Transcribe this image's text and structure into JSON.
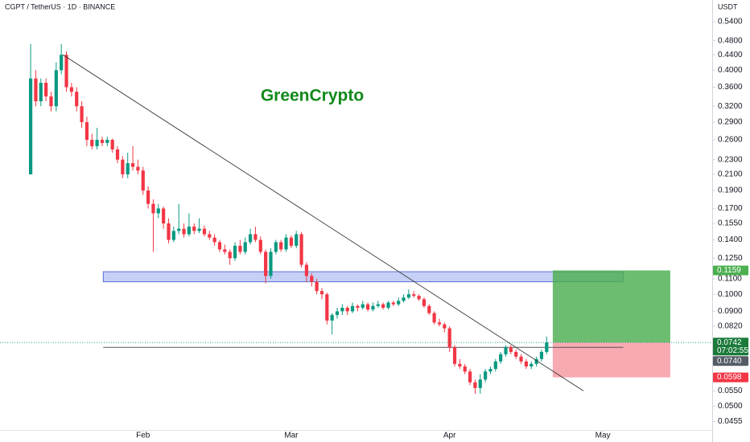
{
  "chart_data": {
    "type": "candlestick",
    "title": "CGPT / TetherUS · 1D · BINANCE",
    "y_unit": "USDT",
    "annotation": "GreenCrypto",
    "annotation_color": "#12891a",
    "log_scale": true,
    "grid": false,
    "up_color": "#089981",
    "down_color": "#f23645",
    "xlim": [
      -6,
      133.4
    ],
    "ylim": [
      0.0432,
      0.6175
    ],
    "xticks": [
      {
        "value": 22,
        "label": "Feb"
      },
      {
        "value": 51,
        "label": "Mar"
      },
      {
        "value": 82,
        "label": "Apr"
      },
      {
        "value": 112,
        "label": "May"
      }
    ],
    "yticks": [
      {
        "value": 0.54,
        "label": "0.5400"
      },
      {
        "value": 0.48,
        "label": "0.4800"
      },
      {
        "value": 0.44,
        "label": "0.4400"
      },
      {
        "value": 0.4,
        "label": "0.4000"
      },
      {
        "value": 0.36,
        "label": "0.3600"
      },
      {
        "value": 0.32,
        "label": "0.3200"
      },
      {
        "value": 0.29,
        "label": "0.2900"
      },
      {
        "value": 0.26,
        "label": "0.2600"
      },
      {
        "value": 0.23,
        "label": "0.2300"
      },
      {
        "value": 0.21,
        "label": "0.2100"
      },
      {
        "value": 0.19,
        "label": "0.1900"
      },
      {
        "value": 0.17,
        "label": "0.1700"
      },
      {
        "value": 0.155,
        "label": "0.1550"
      },
      {
        "value": 0.14,
        "label": "0.1400"
      },
      {
        "value": 0.125,
        "label": "0.1250"
      },
      {
        "value": 0.11,
        "label": "0.1100"
      },
      {
        "value": 0.1,
        "label": "0.1000"
      },
      {
        "value": 0.09,
        "label": "0.0900"
      },
      {
        "value": 0.082,
        "label": "0.0820"
      },
      {
        "value": 0.055,
        "label": "0.0550"
      },
      {
        "value": 0.05,
        "label": "0.0500"
      },
      {
        "value": 0.0455,
        "label": "0.0455"
      }
    ],
    "ohlc": [
      [
        0.21,
        0.47,
        0.21,
        0.38
      ],
      [
        0.38,
        0.4,
        0.32,
        0.33
      ],
      [
        0.33,
        0.38,
        0.32,
        0.37
      ],
      [
        0.37,
        0.38,
        0.33,
        0.34
      ],
      [
        0.34,
        0.35,
        0.31,
        0.32
      ],
      [
        0.32,
        0.42,
        0.31,
        0.4
      ],
      [
        0.4,
        0.47,
        0.39,
        0.44
      ],
      [
        0.44,
        0.45,
        0.35,
        0.36
      ],
      [
        0.36,
        0.37,
        0.34,
        0.35
      ],
      [
        0.35,
        0.36,
        0.31,
        0.32
      ],
      [
        0.32,
        0.33,
        0.28,
        0.29
      ],
      [
        0.29,
        0.3,
        0.25,
        0.26
      ],
      [
        0.26,
        0.27,
        0.245,
        0.25
      ],
      [
        0.25,
        0.28,
        0.245,
        0.26
      ],
      [
        0.26,
        0.265,
        0.25,
        0.255
      ],
      [
        0.255,
        0.265,
        0.25,
        0.26
      ],
      [
        0.26,
        0.262,
        0.24,
        0.245
      ],
      [
        0.245,
        0.25,
        0.225,
        0.23
      ],
      [
        0.23,
        0.235,
        0.205,
        0.21
      ],
      [
        0.21,
        0.24,
        0.205,
        0.225
      ],
      [
        0.225,
        0.25,
        0.215,
        0.22
      ],
      [
        0.22,
        0.23,
        0.21,
        0.215
      ],
      [
        0.215,
        0.22,
        0.185,
        0.19
      ],
      [
        0.19,
        0.195,
        0.17,
        0.175
      ],
      [
        0.175,
        0.18,
        0.13,
        0.165
      ],
      [
        0.165,
        0.175,
        0.16,
        0.17
      ],
      [
        0.17,
        0.172,
        0.15,
        0.155
      ],
      [
        0.155,
        0.16,
        0.137,
        0.14
      ],
      [
        0.14,
        0.152,
        0.138,
        0.148
      ],
      [
        0.148,
        0.175,
        0.145,
        0.15
      ],
      [
        0.15,
        0.155,
        0.142,
        0.145
      ],
      [
        0.145,
        0.165,
        0.143,
        0.152
      ],
      [
        0.152,
        0.155,
        0.145,
        0.148
      ],
      [
        0.148,
        0.16,
        0.146,
        0.15
      ],
      [
        0.15,
        0.153,
        0.143,
        0.145
      ],
      [
        0.145,
        0.148,
        0.14,
        0.142
      ],
      [
        0.142,
        0.145,
        0.135,
        0.138
      ],
      [
        0.138,
        0.14,
        0.13,
        0.132
      ],
      [
        0.132,
        0.136,
        0.128,
        0.13
      ],
      [
        0.13,
        0.132,
        0.12,
        0.125
      ],
      [
        0.125,
        0.138,
        0.123,
        0.135
      ],
      [
        0.135,
        0.14,
        0.128,
        0.13
      ],
      [
        0.13,
        0.142,
        0.128,
        0.138
      ],
      [
        0.138,
        0.15,
        0.136,
        0.145
      ],
      [
        0.145,
        0.152,
        0.138,
        0.14
      ],
      [
        0.14,
        0.143,
        0.128,
        0.13
      ],
      [
        0.13,
        0.132,
        0.107,
        0.112
      ],
      [
        0.112,
        0.133,
        0.11,
        0.13
      ],
      [
        0.13,
        0.14,
        0.128,
        0.138
      ],
      [
        0.138,
        0.14,
        0.13,
        0.132
      ],
      [
        0.132,
        0.145,
        0.13,
        0.142
      ],
      [
        0.142,
        0.144,
        0.133,
        0.135
      ],
      [
        0.135,
        0.148,
        0.133,
        0.145
      ],
      [
        0.145,
        0.147,
        0.118,
        0.12
      ],
      [
        0.12,
        0.122,
        0.108,
        0.112
      ],
      [
        0.112,
        0.114,
        0.105,
        0.108
      ],
      [
        0.108,
        0.11,
        0.1,
        0.102
      ],
      [
        0.102,
        0.104,
        0.097,
        0.1
      ],
      [
        0.1,
        0.101,
        0.083,
        0.085
      ],
      [
        0.085,
        0.089,
        0.078,
        0.088
      ],
      [
        0.088,
        0.092,
        0.086,
        0.09
      ],
      [
        0.09,
        0.094,
        0.088,
        0.092
      ],
      [
        0.092,
        0.093,
        0.088,
        0.09
      ],
      [
        0.09,
        0.095,
        0.089,
        0.093
      ],
      [
        0.093,
        0.094,
        0.09,
        0.092
      ],
      [
        0.092,
        0.096,
        0.091,
        0.094
      ],
      [
        0.094,
        0.095,
        0.09,
        0.091
      ],
      [
        0.091,
        0.095,
        0.09,
        0.093
      ],
      [
        0.093,
        0.096,
        0.092,
        0.094
      ],
      [
        0.094,
        0.095,
        0.091,
        0.092
      ],
      [
        0.092,
        0.096,
        0.091,
        0.095
      ],
      [
        0.095,
        0.096,
        0.093,
        0.094
      ],
      [
        0.094,
        0.098,
        0.093,
        0.096
      ],
      [
        0.096,
        0.1,
        0.095,
        0.098
      ],
      [
        0.098,
        0.103,
        0.097,
        0.1
      ],
      [
        0.1,
        0.102,
        0.098,
        0.099
      ],
      [
        0.099,
        0.1,
        0.096,
        0.097
      ],
      [
        0.097,
        0.098,
        0.092,
        0.093
      ],
      [
        0.093,
        0.094,
        0.088,
        0.089
      ],
      [
        0.089,
        0.09,
        0.083,
        0.084
      ],
      [
        0.084,
        0.086,
        0.082,
        0.083
      ],
      [
        0.083,
        0.084,
        0.079,
        0.081
      ],
      [
        0.081,
        0.082,
        0.07,
        0.072
      ],
      [
        0.072,
        0.073,
        0.064,
        0.065
      ],
      [
        0.065,
        0.067,
        0.063,
        0.064
      ],
      [
        0.064,
        0.065,
        0.061,
        0.062
      ],
      [
        0.062,
        0.063,
        0.057,
        0.058
      ],
      [
        0.058,
        0.059,
        0.054,
        0.056
      ],
      [
        0.056,
        0.061,
        0.054,
        0.059
      ],
      [
        0.059,
        0.063,
        0.058,
        0.062
      ],
      [
        0.062,
        0.064,
        0.061,
        0.063
      ],
      [
        0.063,
        0.067,
        0.062,
        0.066
      ],
      [
        0.066,
        0.07,
        0.065,
        0.069
      ],
      [
        0.069,
        0.073,
        0.068,
        0.072
      ],
      [
        0.072,
        0.073,
        0.069,
        0.07
      ],
      [
        0.07,
        0.071,
        0.067,
        0.068
      ],
      [
        0.068,
        0.069,
        0.065,
        0.066
      ],
      [
        0.066,
        0.067,
        0.063,
        0.064
      ],
      [
        0.064,
        0.066,
        0.063,
        0.065
      ],
      [
        0.065,
        0.068,
        0.064,
        0.067
      ],
      [
        0.067,
        0.071,
        0.066,
        0.07
      ],
      [
        0.07,
        0.077,
        0.069,
        0.0742
      ]
    ],
    "zone": {
      "x": [
        14.2,
        116
      ],
      "low": 0.108,
      "high": 0.115,
      "color": "#bcc8f5"
    },
    "trendline": {
      "x": [
        6.3,
        108.2
      ],
      "y": [
        0.44,
        0.055
      ],
      "color": "#333333"
    },
    "support_line": {
      "x": [
        14.2,
        116
      ],
      "y": 0.072,
      "color": "#555555"
    },
    "long_position": {
      "x": [
        102.2,
        125.2
      ],
      "entry": 0.0742,
      "target": 0.1159,
      "stop": 0.0598,
      "profit_color": "#4caf50",
      "loss_color": "#f7a1aa"
    },
    "price_labels": [
      {
        "value": 0.1159,
        "label": "0.1159",
        "color": "#4caf50"
      },
      {
        "value": 0.0742,
        "label": "0.0742",
        "color": "#1b7a3a"
      },
      {
        "value": 0.074,
        "label": "0.0740",
        "color": "#555c66"
      },
      {
        "value": 0.0598,
        "label": "0.0598",
        "color": "#f23645"
      }
    ],
    "countdown": "07:02:55"
  }
}
